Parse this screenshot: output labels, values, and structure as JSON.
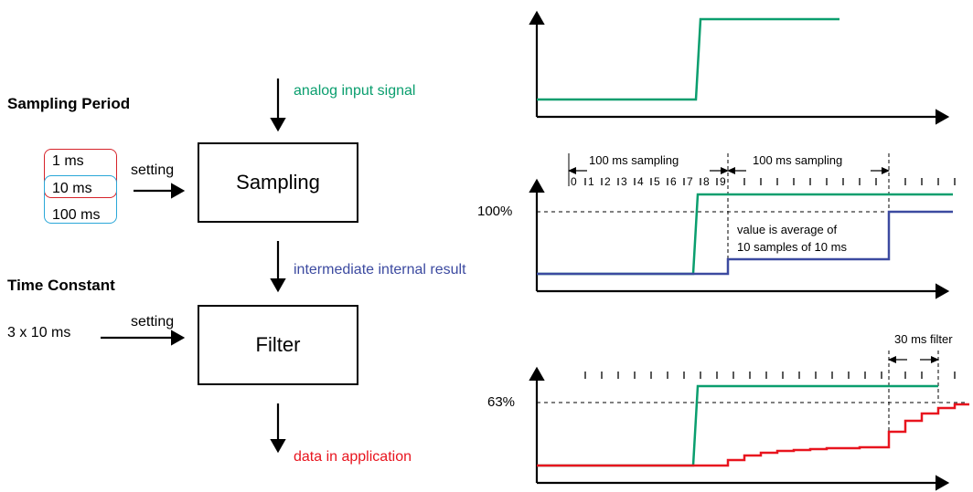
{
  "colors": {
    "green": "#0a9e6e",
    "blue": "#3c4aa0",
    "red": "#e8141e",
    "option_red": "#d6232a",
    "option_blue": "#2aa7d8"
  },
  "left": {
    "sampling_period_heading": "Sampling Period",
    "options": [
      "1 ms",
      "10 ms",
      "100 ms"
    ],
    "setting_label_1": "setting",
    "sampling_box": "Sampling",
    "time_constant_heading": "Time Constant",
    "time_constant_value": "3 x 10 ms",
    "setting_label_2": "setting",
    "filter_box": "Filter"
  },
  "flow": {
    "analog_input": "analog input signal",
    "intermediate": "intermediate internal result",
    "data_out": "data in application"
  },
  "graphs": {
    "mid": {
      "sampling_label_1": "100 ms sampling",
      "sampling_label_2": "100 ms sampling",
      "tick_numbers": [
        "0",
        "1",
        "2",
        "3",
        "4",
        "5",
        "6",
        "7",
        "8",
        "9"
      ],
      "level_label": "100%",
      "note_line_1": "value is average of",
      "note_line_2": "10 samples of 10 ms"
    },
    "bottom": {
      "level_label": "63%",
      "filter_label": "30 ms filter"
    }
  }
}
